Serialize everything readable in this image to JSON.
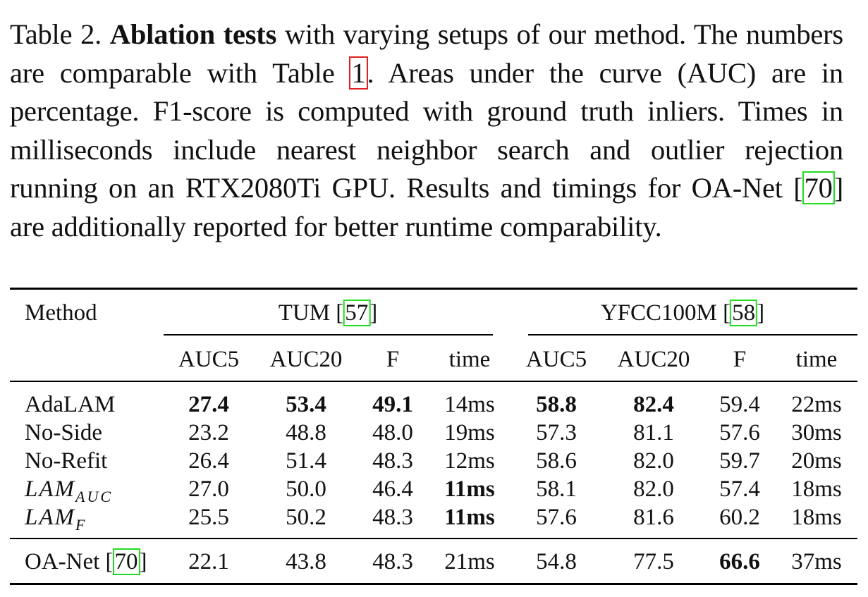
{
  "caption": {
    "label": "Table 2.",
    "bold_title": "Ablation tests",
    "part1": " with varying setups of our method. The numbers are comparable with Table ",
    "ref_table": "1",
    "part2": ". Areas under the curve (AUC) are in percentage. F1-score is computed with ground truth inliers. Times in milliseconds include nearest neighbor search and outlier rejection running on an RTX2080Ti GPU. Results and timings for OA-Net [",
    "ref_oanet": "70",
    "part3": "] are additionally reported for better runtime comparability."
  },
  "table": {
    "method_header": "Method",
    "group1": {
      "name": "TUM [",
      "ref": "57",
      "close": "]"
    },
    "group2": {
      "name": "YFCC100M [",
      "ref": "58",
      "close": "]"
    },
    "columns": [
      "AUC5",
      "AUC20",
      "F",
      "time",
      "AUC5",
      "AUC20",
      "F",
      "time"
    ],
    "rows": [
      {
        "method": "AdaLAM",
        "values": [
          "27.4",
          "53.4",
          "49.1",
          "14ms",
          "58.8",
          "82.4",
          "59.4",
          "22ms"
        ]
      },
      {
        "method": "No-Side",
        "values": [
          "23.2",
          "48.8",
          "48.0",
          "19ms",
          "57.3",
          "81.1",
          "57.6",
          "30ms"
        ]
      },
      {
        "method": "No-Refit",
        "values": [
          "26.4",
          "51.4",
          "48.3",
          "12ms",
          "58.6",
          "82.0",
          "59.7",
          "20ms"
        ]
      },
      {
        "method_main": "LAM",
        "method_sub": "AUC",
        "values": [
          "27.0",
          "50.0",
          "46.4",
          "11ms",
          "58.1",
          "82.0",
          "57.4",
          "18ms"
        ]
      },
      {
        "method_main": "LAM",
        "method_sub": "F",
        "values": [
          "25.5",
          "50.2",
          "48.3",
          "11ms",
          "57.6",
          "81.6",
          "60.2",
          "18ms"
        ]
      }
    ],
    "oanet_row": {
      "method": "OA-Net [",
      "ref": "70",
      "close": "]",
      "values": [
        "22.1",
        "43.8",
        "48.3",
        "21ms",
        "54.8",
        "77.5",
        "66.6",
        "37ms"
      ]
    }
  }
}
